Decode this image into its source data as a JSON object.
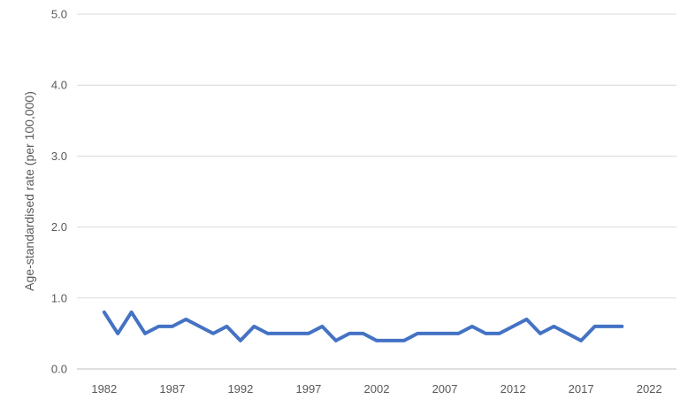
{
  "chart_data": {
    "type": "line",
    "title": "",
    "xlabel": "",
    "ylabel": "Age-standardised rate (per 100,000)",
    "xlim": [
      1980,
      2024
    ],
    "ylim": [
      0,
      5
    ],
    "x_ticks": [
      1982,
      1987,
      1992,
      1997,
      2002,
      2007,
      2012,
      2017,
      2022
    ],
    "y_ticks": [
      0,
      1,
      2,
      3,
      4,
      5
    ],
    "y_tick_labels": [
      "0.0",
      "1.0",
      "2.0",
      "3.0",
      "4.0",
      "5.0"
    ],
    "grid": "horizontal",
    "legend": "none",
    "series": [
      {
        "color": "#4472c4",
        "x": [
          1982,
          1983,
          1984,
          1985,
          1986,
          1987,
          1988,
          1989,
          1990,
          1991,
          1992,
          1993,
          1994,
          1995,
          1996,
          1997,
          1998,
          1999,
          2000,
          2001,
          2002,
          2003,
          2004,
          2005,
          2006,
          2007,
          2008,
          2009,
          2010,
          2011,
          2012,
          2013,
          2014,
          2015,
          2016,
          2017,
          2018,
          2019,
          2020
        ],
        "values": [
          0.8,
          0.5,
          0.8,
          0.5,
          0.6,
          0.6,
          0.7,
          0.6,
          0.5,
          0.6,
          0.4,
          0.6,
          0.5,
          0.5,
          0.5,
          0.5,
          0.6,
          0.4,
          0.5,
          0.5,
          0.4,
          0.4,
          0.4,
          0.5,
          0.5,
          0.5,
          0.5,
          0.6,
          0.5,
          0.5,
          0.6,
          0.7,
          0.5,
          0.6,
          0.5,
          0.4,
          0.6,
          0.6,
          0.6
        ]
      }
    ]
  }
}
